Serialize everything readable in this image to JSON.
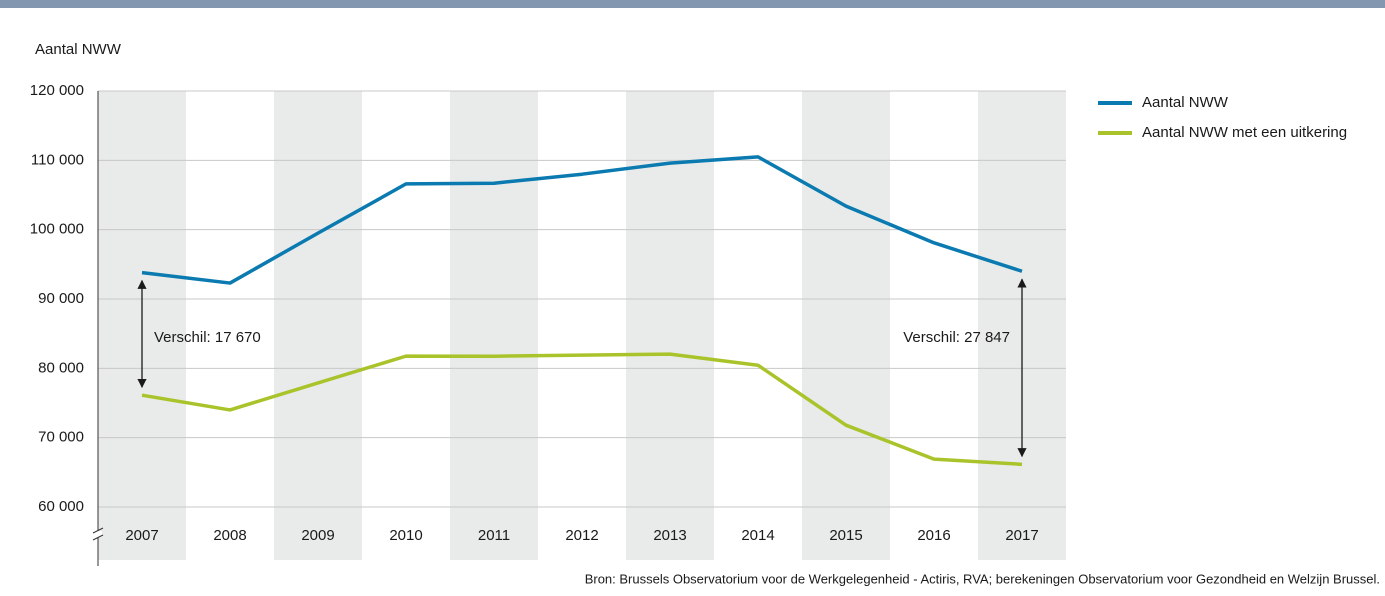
{
  "chart_data": {
    "type": "line",
    "ylabel": "Aantal NWW",
    "categories": [
      "2007",
      "2008",
      "2009",
      "2010",
      "2011",
      "2012",
      "2013",
      "2014",
      "2015",
      "2016",
      "2017"
    ],
    "series": [
      {
        "name": "Aantal NWW",
        "color": "#0a7ab0",
        "values": [
          93800,
          92300,
          99500,
          106600,
          106700,
          108000,
          109600,
          110500,
          103400,
          98100,
          94000
        ]
      },
      {
        "name": "Aantal NWW met een uitkering",
        "color": "#a9c42b",
        "values": [
          76130,
          74000,
          77900,
          81760,
          81750,
          81900,
          82050,
          80450,
          71800,
          66900,
          66153
        ]
      }
    ],
    "ylim": [
      60000,
      120000
    ],
    "yticks": [
      {
        "value": 60000,
        "label": "60 000"
      },
      {
        "value": 70000,
        "label": "70 000"
      },
      {
        "value": 80000,
        "label": "80 000"
      },
      {
        "value": 90000,
        "label": "90 000"
      },
      {
        "value": 100000,
        "label": "100 000"
      },
      {
        "value": 110000,
        "label": "110 000"
      },
      {
        "value": 120000,
        "label": "120 000"
      }
    ],
    "grid": true,
    "annotations": [
      "Verschil: 17 670",
      "Verschil: 27 847"
    ],
    "source": "Bron: Brussels Observatorium voor de Werkgelegenheid - Actiris, RVA; berekeningen Observatorium voor Gezondheid en Welzijn Brussel."
  }
}
